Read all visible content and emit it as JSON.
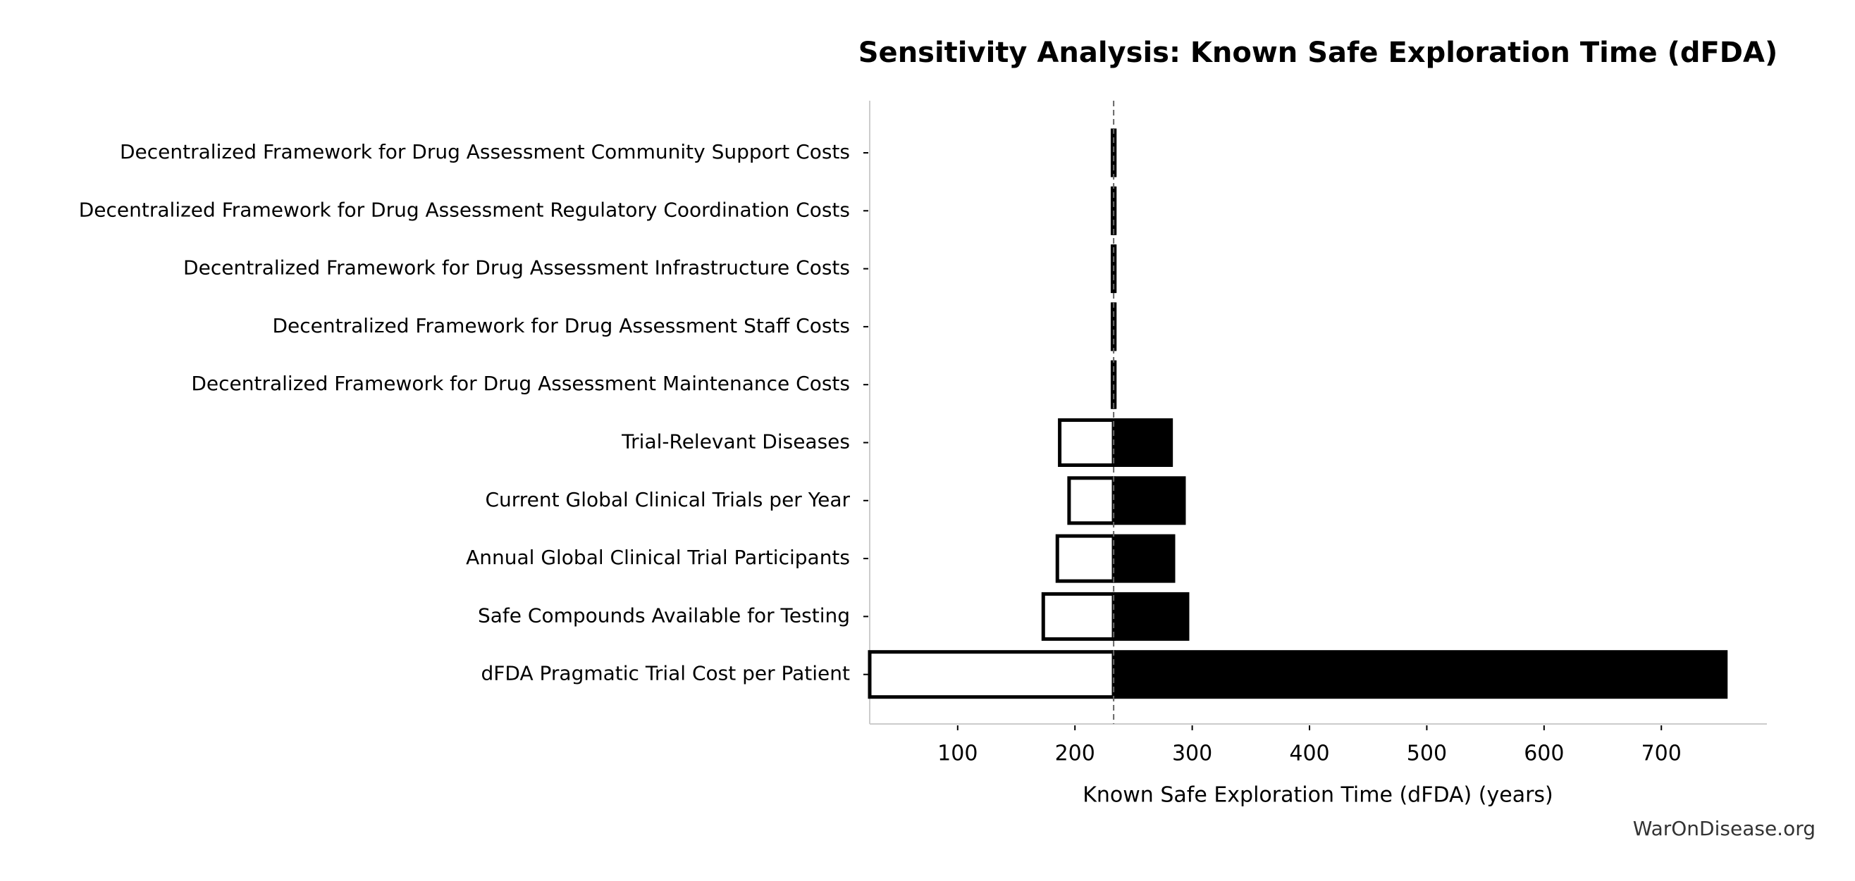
{
  "chart_data": {
    "type": "tornado",
    "title": "Sensitivity Analysis: Known Safe Exploration Time (dFDA)",
    "xlabel": "Known Safe Exploration Time (dFDA) (years)",
    "source": "WarOnDisease.org",
    "categories": [
      "Decentralized Framework for Drug Assessment Community Support Costs",
      "Decentralized Framework for Drug Assessment Regulatory Coordination Costs",
      "Decentralized Framework for Drug Assessment Infrastructure Costs",
      "Decentralized Framework for Drug Assessment Staff Costs",
      "Decentralized Framework for Drug Assessment Maintenance Costs",
      "Trial-Relevant Diseases",
      "Current Global Clinical Trials per Year",
      "Annual Global Clinical Trial Participants",
      "Safe Compounds Available for Testing",
      "dFDA Pragmatic Trial Cost per Patient"
    ],
    "baseline": 233,
    "low": [
      232,
      232,
      232,
      232,
      232,
      187,
      195,
      185,
      173,
      25
    ],
    "high": [
      234,
      234,
      234,
      234,
      234,
      282,
      293,
      284,
      296,
      755
    ],
    "low_color": "#ffffff",
    "high_color": "#000000",
    "xlim": [
      25,
      790
    ],
    "xticks": [
      100,
      200,
      300,
      400,
      500,
      600,
      700
    ]
  }
}
